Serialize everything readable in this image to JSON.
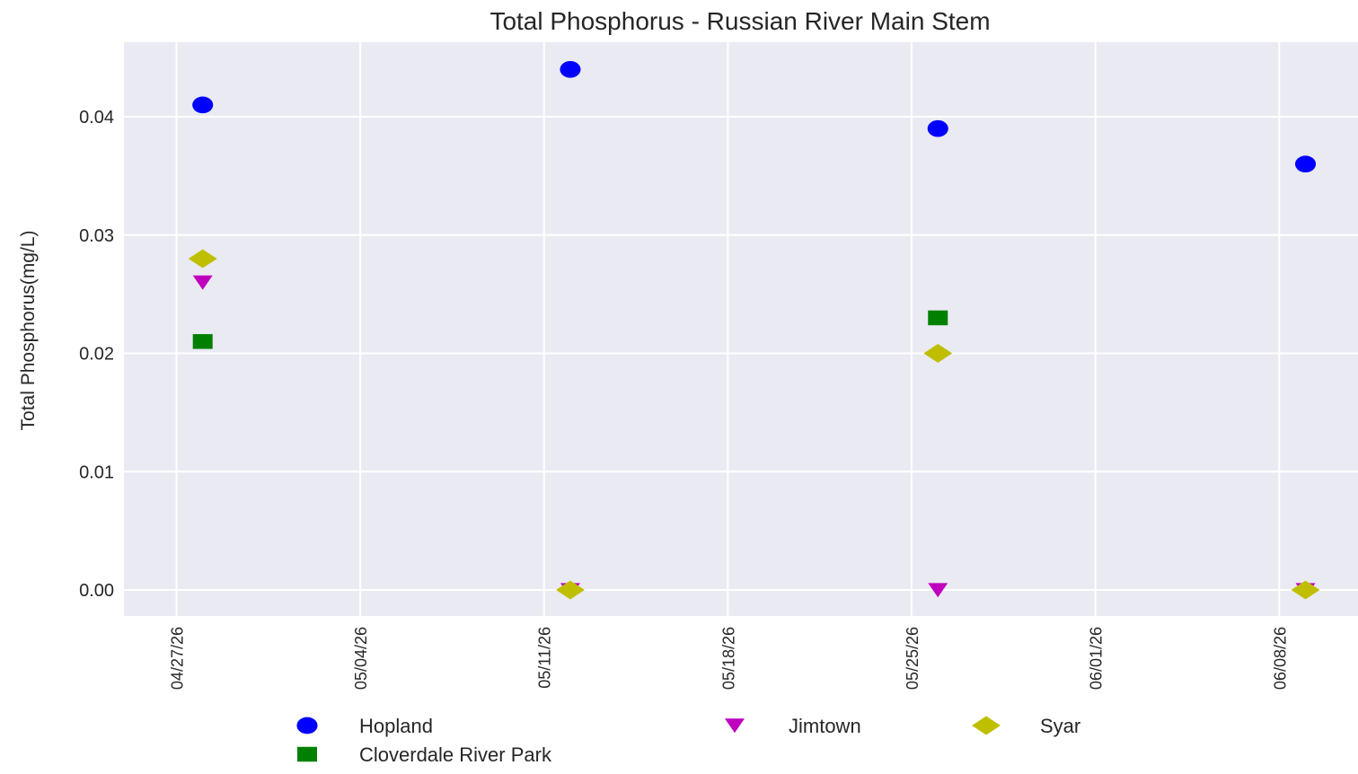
{
  "chart_data": {
    "type": "scatter",
    "title": "Total Phosphorus - Russian River Main Stem",
    "xlabel": "",
    "ylabel": "Total Phosphorus(mg/L)",
    "ylim": [
      -0.0022,
      0.0463
    ],
    "xlim": [
      "2026-04-25",
      "2026-06-11"
    ],
    "x_ticks": [
      "04/27/26",
      "05/04/26",
      "05/11/26",
      "05/18/26",
      "05/25/26",
      "06/01/26",
      "06/08/26"
    ],
    "x_tick_dates": [
      "2026-04-27",
      "2026-05-04",
      "2026-05-11",
      "2026-05-18",
      "2026-05-25",
      "2026-06-01",
      "2026-06-08"
    ],
    "y_ticks": [
      "0.00",
      "0.01",
      "0.02",
      "0.03",
      "0.04"
    ],
    "y_tick_values": [
      0.0,
      0.01,
      0.02,
      0.03,
      0.04
    ],
    "grid": true,
    "legend_position": "bottom",
    "series": [
      {
        "name": "Hopland",
        "marker": "circle",
        "color": "#0000ff",
        "x": [
          "2026-04-28",
          "2026-05-12",
          "2026-05-26",
          "2026-06-09"
        ],
        "y": [
          0.041,
          0.044,
          0.039,
          0.036
        ]
      },
      {
        "name": "Jimtown",
        "marker": "triangle-down",
        "color": "#bf00bf",
        "x": [
          "2026-04-28",
          "2026-05-12",
          "2026-05-26",
          "2026-06-09"
        ],
        "y": [
          0.026,
          0.0,
          0.0,
          0.0
        ]
      },
      {
        "name": "Syar",
        "marker": "diamond",
        "color": "#bfbf00",
        "x": [
          "2026-04-28",
          "2026-05-12",
          "2026-05-26",
          "2026-06-09"
        ],
        "y": [
          0.028,
          0.0,
          0.02,
          0.0
        ]
      },
      {
        "name": "Cloverdale River Park",
        "marker": "square",
        "color": "#008000",
        "x": [
          "2026-04-28",
          "2026-05-26"
        ],
        "y": [
          0.021,
          0.023
        ]
      }
    ]
  },
  "colors": {
    "plot_background": "#eaeaf2",
    "gridline": "#ffffff"
  }
}
